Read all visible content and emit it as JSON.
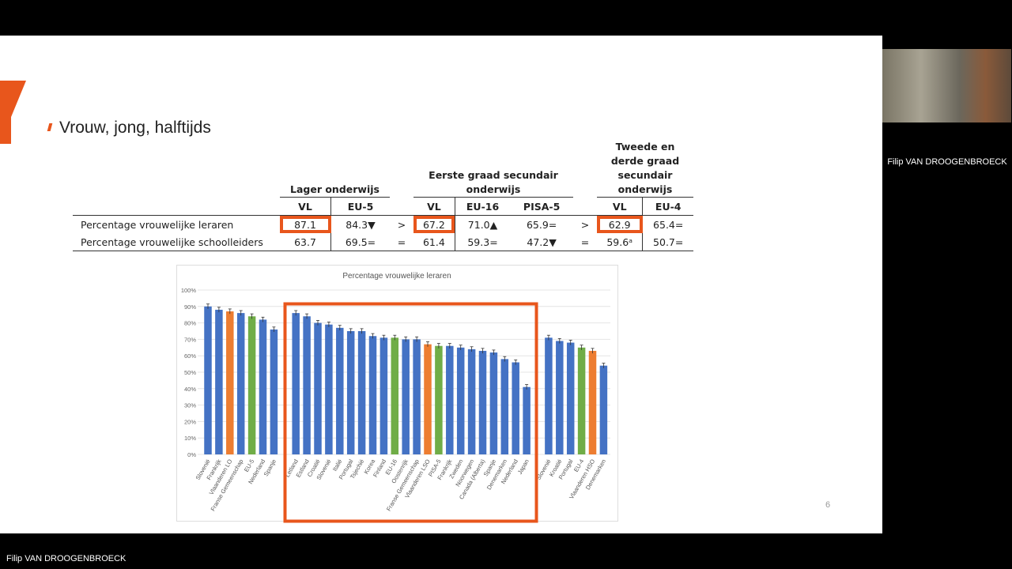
{
  "slide": {
    "title": "Vrouw, jong, halftijds",
    "page_number": "6"
  },
  "table": {
    "groups": [
      "Lager onderwijs",
      "Eerste graad secundair onderwijs",
      "Tweede en derde graad secundair onderwijs"
    ],
    "columns": [
      "VL",
      "EU-5",
      "VL",
      "EU-16",
      "PISA-5",
      "VL",
      "EU-4"
    ],
    "rows": [
      {
        "label": "Percentage vrouwelijke leraren",
        "cells": [
          "87.1",
          "84.3▼",
          ">",
          "67.2",
          "71.0▲",
          "65.9=",
          ">",
          "62.9",
          "65.4="
        ]
      },
      {
        "label": "Percentage vrouwelijke schoolleiders",
        "cells": [
          "63.7",
          "69.5=",
          "=",
          "61.4",
          "59.3=",
          "47.2▼",
          "=",
          "59.6ᵃ",
          "50.7="
        ]
      }
    ]
  },
  "chart_data": {
    "type": "bar",
    "title": "Percentage vrouwelijke leraren",
    "ylim": [
      0,
      100
    ],
    "yticks": [
      "0%",
      "10%",
      "20%",
      "30%",
      "40%",
      "50%",
      "60%",
      "70%",
      "80%",
      "90%",
      "100%"
    ],
    "grid": true,
    "colors": {
      "country": "#4472c4",
      "flanders": "#ed7d31",
      "average": "#70ad47",
      "highlight": "#e8561c"
    },
    "groups": [
      {
        "categories": [
          "Slovenië",
          "Frankrijk",
          "Vlaanderen LO",
          "Franse Gemeenschap",
          "EU-5",
          "Nederland",
          "Spanje"
        ],
        "values": [
          90,
          88,
          87,
          86,
          84,
          82,
          76
        ],
        "kinds": [
          "c",
          "c",
          "f",
          "c",
          "a",
          "c",
          "c"
        ]
      },
      {
        "categories": [
          "Letland",
          "Estland",
          "Croatië",
          "Slovenië",
          "Italië",
          "Portugal",
          "Tsjechië",
          "Korea",
          "Finland",
          "EU-16",
          "Oostenrijk",
          "Franse Gemeenschap",
          "Vlaanderen LSO",
          "PISA-5",
          "Frankrijk",
          "Zweden",
          "Noorwegen",
          "Canada (Alberta)",
          "Spanje",
          "Denemarken",
          "Nederland",
          "Japan"
        ],
        "values": [
          86,
          84,
          80,
          79,
          77,
          75,
          75,
          72,
          71,
          71,
          70,
          70,
          67,
          66,
          66,
          65,
          64,
          63,
          62,
          58,
          56,
          41
        ],
        "kinds": [
          "c",
          "c",
          "c",
          "c",
          "c",
          "c",
          "c",
          "c",
          "c",
          "a",
          "c",
          "c",
          "f",
          "a",
          "c",
          "c",
          "c",
          "c",
          "c",
          "c",
          "c",
          "c"
        ]
      },
      {
        "categories": [
          "Slovenië",
          "Kroatië",
          "Portugal",
          "EU-4",
          "Vlaanderen HSO",
          "Denemarken"
        ],
        "values": [
          71,
          69,
          68,
          65,
          63,
          54
        ],
        "kinds": [
          "c",
          "c",
          "c",
          "a",
          "f",
          "c"
        ]
      }
    ]
  },
  "participant": {
    "name": "Filip VAN DROOGENBROECK"
  }
}
